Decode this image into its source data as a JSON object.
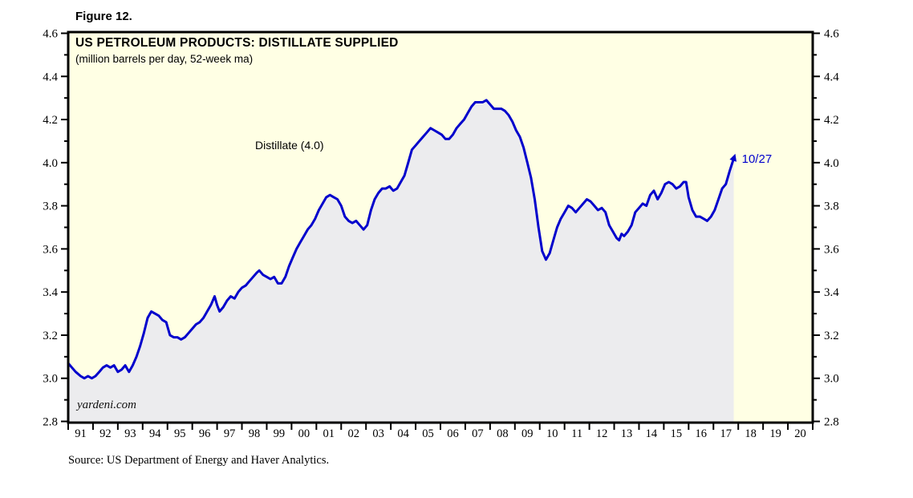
{
  "figure": {
    "label": "Figure 12."
  },
  "header": {
    "title": "US PETROLEUM PRODUCTS: DISTILLATE SUPPLIED",
    "subtitle": "(million barrels per day, 52-week ma)"
  },
  "annotations": {
    "series_label": "Distillate (4.0)",
    "last_date_label": "10/27",
    "watermark": "yardeni.com"
  },
  "footer": {
    "source": "Source: US Department of Energy and Haver Analytics."
  },
  "colors": {
    "line_blue": "#0000CC",
    "annotation_blue": "#0000CC",
    "plot_background": "#FFFFE4",
    "area_fill": "#ECECEE",
    "frame_black": "#000000"
  },
  "chart_data": {
    "type": "line",
    "title": "US PETROLEUM PRODUCTS: DISTILLATE SUPPLIED",
    "subtitle": "(million barrels per day, 52-week ma)",
    "xlabel": "",
    "ylabel": "million barrels per day",
    "x_range": [
      1991,
      2021
    ],
    "x_tick_labels": [
      "91",
      "92",
      "93",
      "94",
      "95",
      "96",
      "97",
      "98",
      "99",
      "00",
      "01",
      "02",
      "03",
      "04",
      "05",
      "06",
      "07",
      "08",
      "09",
      "10",
      "11",
      "12",
      "13",
      "14",
      "15",
      "16",
      "17",
      "18",
      "19",
      "20"
    ],
    "ylim": [
      2.8,
      4.6
    ],
    "y_ticks": [
      2.8,
      3.0,
      3.2,
      3.4,
      3.6,
      3.8,
      4.0,
      4.2,
      4.4,
      4.6
    ],
    "y_minor_step": 0.1,
    "grid": false,
    "legend_position": "none",
    "area_fill_under_line": true,
    "last_point": {
      "x": 2017.82,
      "value": 4.02,
      "label": "10/27"
    },
    "series": [
      {
        "name": "Distillate",
        "label_on_chart": "Distillate (4.0)",
        "points": [
          [
            1991.0,
            3.07
          ],
          [
            1991.15,
            3.05
          ],
          [
            1991.3,
            3.03
          ],
          [
            1991.5,
            3.01
          ],
          [
            1991.65,
            3.0
          ],
          [
            1991.8,
            3.01
          ],
          [
            1991.95,
            3.0
          ],
          [
            1992.1,
            3.01
          ],
          [
            1992.25,
            3.03
          ],
          [
            1992.4,
            3.05
          ],
          [
            1992.55,
            3.06
          ],
          [
            1992.7,
            3.05
          ],
          [
            1992.85,
            3.06
          ],
          [
            1993.0,
            3.03
          ],
          [
            1993.15,
            3.04
          ],
          [
            1993.3,
            3.06
          ],
          [
            1993.45,
            3.03
          ],
          [
            1993.6,
            3.06
          ],
          [
            1993.75,
            3.1
          ],
          [
            1993.9,
            3.15
          ],
          [
            1994.05,
            3.21
          ],
          [
            1994.2,
            3.28
          ],
          [
            1994.35,
            3.31
          ],
          [
            1994.5,
            3.3
          ],
          [
            1994.65,
            3.29
          ],
          [
            1994.8,
            3.27
          ],
          [
            1994.95,
            3.26
          ],
          [
            1995.1,
            3.2
          ],
          [
            1995.25,
            3.19
          ],
          [
            1995.4,
            3.19
          ],
          [
            1995.55,
            3.18
          ],
          [
            1995.7,
            3.19
          ],
          [
            1995.85,
            3.21
          ],
          [
            1996.0,
            3.23
          ],
          [
            1996.15,
            3.25
          ],
          [
            1996.3,
            3.26
          ],
          [
            1996.45,
            3.28
          ],
          [
            1996.6,
            3.31
          ],
          [
            1996.75,
            3.34
          ],
          [
            1996.9,
            3.38
          ],
          [
            1997.0,
            3.34
          ],
          [
            1997.1,
            3.31
          ],
          [
            1997.25,
            3.33
          ],
          [
            1997.4,
            3.36
          ],
          [
            1997.55,
            3.38
          ],
          [
            1997.7,
            3.37
          ],
          [
            1997.85,
            3.4
          ],
          [
            1998.0,
            3.42
          ],
          [
            1998.15,
            3.43
          ],
          [
            1998.3,
            3.45
          ],
          [
            1998.45,
            3.47
          ],
          [
            1998.6,
            3.49
          ],
          [
            1998.7,
            3.5
          ],
          [
            1998.85,
            3.48
          ],
          [
            1999.0,
            3.47
          ],
          [
            1999.15,
            3.46
          ],
          [
            1999.3,
            3.47
          ],
          [
            1999.45,
            3.44
          ],
          [
            1999.6,
            3.44
          ],
          [
            1999.75,
            3.47
          ],
          [
            1999.9,
            3.52
          ],
          [
            2000.05,
            3.56
          ],
          [
            2000.2,
            3.6
          ],
          [
            2000.35,
            3.63
          ],
          [
            2000.5,
            3.66
          ],
          [
            2000.65,
            3.69
          ],
          [
            2000.8,
            3.71
          ],
          [
            2000.95,
            3.74
          ],
          [
            2001.1,
            3.78
          ],
          [
            2001.25,
            3.81
          ],
          [
            2001.4,
            3.84
          ],
          [
            2001.55,
            3.85
          ],
          [
            2001.7,
            3.84
          ],
          [
            2001.85,
            3.83
          ],
          [
            2002.0,
            3.8
          ],
          [
            2002.15,
            3.75
          ],
          [
            2002.3,
            3.73
          ],
          [
            2002.45,
            3.72
          ],
          [
            2002.6,
            3.73
          ],
          [
            2002.75,
            3.71
          ],
          [
            2002.9,
            3.69
          ],
          [
            2003.05,
            3.71
          ],
          [
            2003.2,
            3.78
          ],
          [
            2003.35,
            3.83
          ],
          [
            2003.5,
            3.86
          ],
          [
            2003.65,
            3.88
          ],
          [
            2003.8,
            3.88
          ],
          [
            2003.95,
            3.89
          ],
          [
            2004.1,
            3.87
          ],
          [
            2004.25,
            3.88
          ],
          [
            2004.4,
            3.91
          ],
          [
            2004.55,
            3.94
          ],
          [
            2004.7,
            4.0
          ],
          [
            2004.85,
            4.06
          ],
          [
            2005.0,
            4.08
          ],
          [
            2005.15,
            4.1
          ],
          [
            2005.3,
            4.12
          ],
          [
            2005.45,
            4.14
          ],
          [
            2005.6,
            4.16
          ],
          [
            2005.75,
            4.15
          ],
          [
            2005.9,
            4.14
          ],
          [
            2006.05,
            4.13
          ],
          [
            2006.2,
            4.11
          ],
          [
            2006.35,
            4.11
          ],
          [
            2006.5,
            4.13
          ],
          [
            2006.65,
            4.16
          ],
          [
            2006.8,
            4.18
          ],
          [
            2006.95,
            4.2
          ],
          [
            2007.1,
            4.23
          ],
          [
            2007.25,
            4.26
          ],
          [
            2007.4,
            4.28
          ],
          [
            2007.55,
            4.28
          ],
          [
            2007.7,
            4.28
          ],
          [
            2007.85,
            4.29
          ],
          [
            2008.0,
            4.27
          ],
          [
            2008.15,
            4.25
          ],
          [
            2008.3,
            4.25
          ],
          [
            2008.45,
            4.25
          ],
          [
            2008.6,
            4.24
          ],
          [
            2008.75,
            4.22
          ],
          [
            2008.9,
            4.19
          ],
          [
            2009.05,
            4.15
          ],
          [
            2009.2,
            4.12
          ],
          [
            2009.35,
            4.07
          ],
          [
            2009.5,
            4.0
          ],
          [
            2009.65,
            3.93
          ],
          [
            2009.8,
            3.83
          ],
          [
            2009.95,
            3.7
          ],
          [
            2010.1,
            3.59
          ],
          [
            2010.25,
            3.55
          ],
          [
            2010.4,
            3.58
          ],
          [
            2010.55,
            3.64
          ],
          [
            2010.7,
            3.7
          ],
          [
            2010.85,
            3.74
          ],
          [
            2011.0,
            3.77
          ],
          [
            2011.15,
            3.8
          ],
          [
            2011.3,
            3.79
          ],
          [
            2011.45,
            3.77
          ],
          [
            2011.6,
            3.79
          ],
          [
            2011.75,
            3.81
          ],
          [
            2011.9,
            3.83
          ],
          [
            2012.05,
            3.82
          ],
          [
            2012.2,
            3.8
          ],
          [
            2012.35,
            3.78
          ],
          [
            2012.5,
            3.79
          ],
          [
            2012.65,
            3.77
          ],
          [
            2012.8,
            3.71
          ],
          [
            2012.95,
            3.68
          ],
          [
            2013.1,
            3.65
          ],
          [
            2013.2,
            3.64
          ],
          [
            2013.3,
            3.67
          ],
          [
            2013.4,
            3.66
          ],
          [
            2013.55,
            3.68
          ],
          [
            2013.7,
            3.71
          ],
          [
            2013.85,
            3.77
          ],
          [
            2014.0,
            3.79
          ],
          [
            2014.15,
            3.81
          ],
          [
            2014.3,
            3.8
          ],
          [
            2014.45,
            3.85
          ],
          [
            2014.6,
            3.87
          ],
          [
            2014.75,
            3.83
          ],
          [
            2014.9,
            3.86
          ],
          [
            2015.05,
            3.9
          ],
          [
            2015.2,
            3.91
          ],
          [
            2015.35,
            3.9
          ],
          [
            2015.5,
            3.88
          ],
          [
            2015.65,
            3.89
          ],
          [
            2015.8,
            3.91
          ],
          [
            2015.9,
            3.91
          ],
          [
            2016.0,
            3.84
          ],
          [
            2016.15,
            3.78
          ],
          [
            2016.3,
            3.75
          ],
          [
            2016.45,
            3.75
          ],
          [
            2016.6,
            3.74
          ],
          [
            2016.75,
            3.73
          ],
          [
            2016.9,
            3.75
          ],
          [
            2017.05,
            3.78
          ],
          [
            2017.2,
            3.83
          ],
          [
            2017.35,
            3.88
          ],
          [
            2017.5,
            3.9
          ],
          [
            2017.65,
            3.96
          ],
          [
            2017.82,
            4.02
          ]
        ]
      }
    ]
  }
}
